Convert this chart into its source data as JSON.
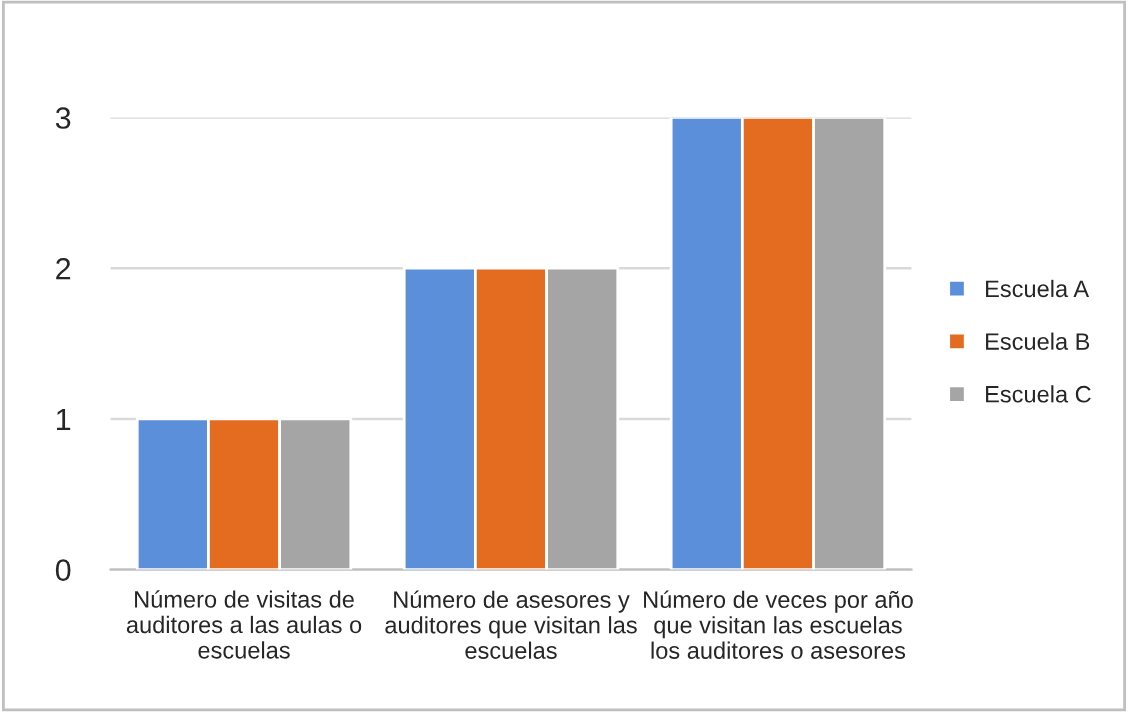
{
  "chart_data": {
    "type": "bar",
    "categories": [
      "Número de visitas de auditores a las aulas o escuelas",
      "Número de asesores y auditores que visitan las escuelas",
      "Número de veces por año que visitan las escuelas los auditores o asesores"
    ],
    "series": [
      {
        "name": "Escuela A",
        "color": "#5b8fd9",
        "values": [
          1,
          2,
          3
        ]
      },
      {
        "name": "Escuela B",
        "color": "#e36c21",
        "values": [
          1,
          2,
          3
        ]
      },
      {
        "name": "Escuela C",
        "color": "#a5a5a5",
        "values": [
          1,
          2,
          3
        ]
      }
    ],
    "ylim": [
      0,
      3
    ],
    "yticks": [
      0,
      1,
      2,
      3
    ],
    "grid": "y",
    "legend": "right"
  }
}
